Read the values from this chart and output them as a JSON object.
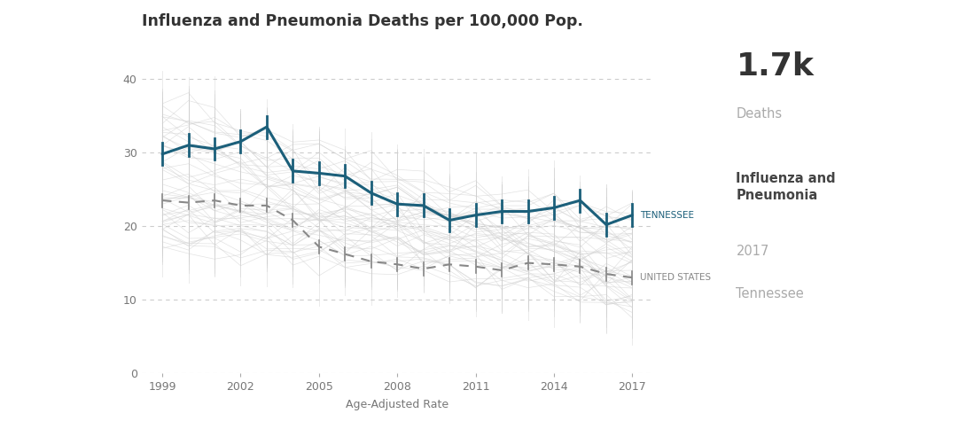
{
  "title": "Influenza and Pneumonia Deaths per 100,000 Pop.",
  "xlabel": "Age-Adjusted Rate",
  "years": [
    1999,
    2000,
    2001,
    2002,
    2003,
    2004,
    2005,
    2006,
    2007,
    2008,
    2009,
    2010,
    2011,
    2012,
    2013,
    2014,
    2015,
    2016,
    2017
  ],
  "tennessee": [
    29.8,
    31.0,
    30.5,
    31.5,
    33.5,
    27.5,
    27.2,
    26.8,
    24.5,
    23.0,
    22.8,
    20.8,
    21.5,
    22.0,
    22.0,
    22.5,
    23.5,
    20.2,
    21.5
  ],
  "us": [
    23.5,
    23.2,
    23.5,
    22.8,
    22.8,
    20.8,
    17.2,
    16.2,
    15.2,
    14.8,
    14.2,
    14.8,
    14.5,
    14.0,
    15.0,
    14.8,
    14.5,
    13.5,
    13.0
  ],
  "state_color": "#1b5f7a",
  "us_color": "#888888",
  "background_color": "#ffffff",
  "grid_color": "#cccccc",
  "bg_line_color": "#d0d0d0",
  "ylim": [
    0,
    42
  ],
  "yticks": [
    0,
    10,
    20,
    30,
    40
  ],
  "xticks": [
    1999,
    2002,
    2005,
    2008,
    2011,
    2014,
    2017
  ],
  "state_label": "TENNESSEE",
  "us_label": "UNITED STATES",
  "stat_number": "1.7k",
  "stat_label": "Deaths",
  "info_bold": "Influenza and\nPneumonia",
  "info_year": "2017",
  "info_state": "Tennessee",
  "num_bg_lines": 50
}
